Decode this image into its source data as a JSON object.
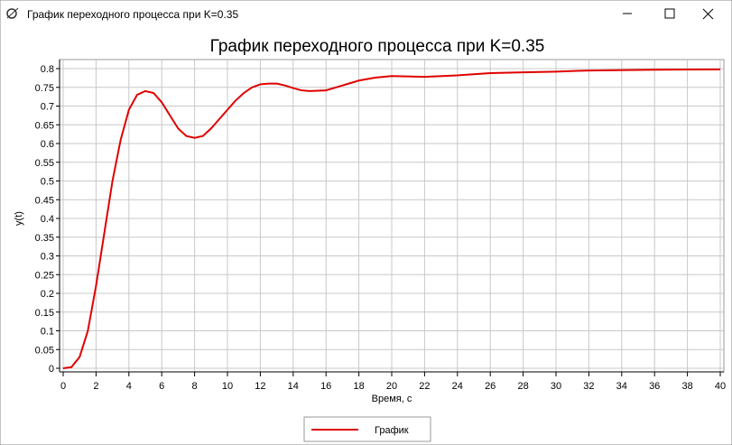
{
  "window": {
    "title": "График переходного процесса при K=0.35"
  },
  "chart_data": {
    "type": "line",
    "title": "График переходного процесса при K=0.35",
    "x_label": "Время, с",
    "y_label": "y(t)",
    "x": [
      0,
      0.5,
      1,
      1.5,
      2,
      2.5,
      3,
      3.5,
      4,
      4.5,
      5,
      5.5,
      6,
      6.5,
      7,
      7.5,
      8,
      8.5,
      9,
      9.5,
      10,
      10.5,
      11,
      11.5,
      12,
      12.5,
      13,
      13.5,
      14,
      14.5,
      15,
      16,
      17,
      18,
      19,
      20,
      22,
      24,
      26,
      28,
      30,
      32,
      36,
      40
    ],
    "series": [
      {
        "name": "График",
        "color": "#e00000",
        "values": [
          0,
          0.003,
          0.03,
          0.1,
          0.22,
          0.36,
          0.5,
          0.61,
          0.69,
          0.73,
          0.74,
          0.735,
          0.71,
          0.675,
          0.64,
          0.62,
          0.615,
          0.62,
          0.64,
          0.665,
          0.69,
          0.715,
          0.735,
          0.75,
          0.758,
          0.76,
          0.76,
          0.755,
          0.748,
          0.742,
          0.74,
          0.742,
          0.755,
          0.768,
          0.776,
          0.78,
          0.778,
          0.782,
          0.788,
          0.79,
          0.792,
          0.795,
          0.797,
          0.798
        ]
      }
    ],
    "xlim": [
      0,
      40
    ],
    "xticks": [
      0,
      2,
      4,
      6,
      8,
      10,
      12,
      14,
      16,
      18,
      20,
      22,
      24,
      26,
      28,
      30,
      32,
      34,
      36,
      38,
      40
    ],
    "ylim": [
      0,
      0.8
    ],
    "yticks": [
      0,
      0.05,
      0.1,
      0.15,
      0.2,
      0.25,
      0.3,
      0.35,
      0.4,
      0.45,
      0.5,
      0.55,
      0.6,
      0.65,
      0.7,
      0.75,
      0.8
    ],
    "grid": true,
    "legend": "bottom"
  }
}
